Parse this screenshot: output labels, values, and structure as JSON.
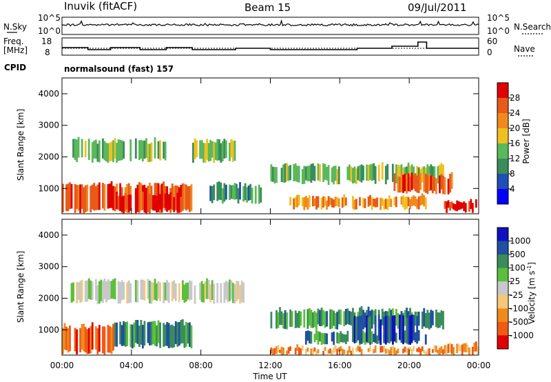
{
  "header": {
    "station": "Inuvik (fitACF)",
    "beam": "Beam 15",
    "date": "09/Jul/2011"
  },
  "top_panels": {
    "nsky_label": "N.Sky",
    "nsky_ticks": [
      "10^5",
      "10^0"
    ],
    "nsearch_label": "N.Search",
    "nsearch_ticks": [
      "10^5",
      "10^0"
    ],
    "freq_label": "Freq.",
    "freq_unit": "[MHz]",
    "freq_ticks": [
      "18",
      "8"
    ],
    "nave_label": "Nave",
    "nave_ticks": [
      "60",
      "0"
    ],
    "cpid_label": "CPID",
    "cpid_value": "normalsound (fast) 157"
  },
  "colors": {
    "power_scale": [
      "#0000ff",
      "#1f4fb4",
      "#3b8c5a",
      "#5bb85b",
      "#f0c020",
      "#f08a1e",
      "#e85a1a",
      "#e00000"
    ],
    "velocity_scale": [
      "#e00000",
      "#f05a14",
      "#f08a1e",
      "#f5c878",
      "#c8c8c8",
      "#5bbf3a",
      "#3b8c5a",
      "#2050a0",
      "#1010c0"
    ],
    "nsky_line": "#000000"
  },
  "chart_data": [
    {
      "type": "heatmap",
      "panel": "power",
      "ylabel": "Slant Range [km]",
      "yticks": [
        "1000",
        "2000",
        "3000",
        "4000"
      ],
      "ylim": [
        200,
        4500
      ],
      "xlim": [
        "00:00",
        "24:00"
      ],
      "colorbar_label": "Power [dB]",
      "colorbar_ticks": [
        "4",
        "8",
        "12",
        "16",
        "20",
        "24",
        "28"
      ],
      "bands": [
        {
          "t0": 0.0,
          "t1": 7.5,
          "r0": 300,
          "r1": 1200,
          "level": 6
        },
        {
          "t0": 3.0,
          "t1": 7.0,
          "r0": 300,
          "r1": 900,
          "level": 7
        },
        {
          "t0": 0.5,
          "t1": 6.0,
          "r0": 1900,
          "r1": 2600,
          "level": 3
        },
        {
          "t0": 7.5,
          "t1": 10.0,
          "r0": 1900,
          "r1": 2600,
          "level": 3
        },
        {
          "t0": 8.5,
          "t1": 11.5,
          "r0": 600,
          "r1": 1200,
          "level": 2
        },
        {
          "t0": 12.0,
          "t1": 22.0,
          "r0": 1200,
          "r1": 1800,
          "level": 3
        },
        {
          "t0": 13.0,
          "t1": 21.0,
          "r0": 400,
          "r1": 800,
          "level": 5
        },
        {
          "t0": 19.0,
          "t1": 22.5,
          "r0": 900,
          "r1": 1500,
          "level": 6
        },
        {
          "t0": 22.0,
          "t1": 24.0,
          "r0": 300,
          "r1": 650,
          "level": 7
        }
      ]
    },
    {
      "type": "heatmap",
      "panel": "velocity",
      "ylabel": "Slant Range [km]",
      "yticks": [
        "1000",
        "2000",
        "3000",
        "4000"
      ],
      "ylim": [
        200,
        4500
      ],
      "xlim": [
        "00:00",
        "24:00"
      ],
      "xlabel": "Time UT",
      "xticks": [
        "00:00",
        "04:00",
        "08:00",
        "12:00",
        "16:00",
        "20:00",
        "00:00"
      ],
      "colorbar_label": "Velocity [m s",
      "colorbar_unit_sup": "-1",
      "colorbar_ticks": [
        "1000",
        "500",
        "100",
        "25",
        "-25",
        "-100",
        "-500",
        "-1000"
      ],
      "bands": [
        {
          "t0": 0.0,
          "t1": 3.0,
          "r0": 300,
          "r1": 1200,
          "level": 1
        },
        {
          "t0": 3.0,
          "t1": 7.5,
          "r0": 500,
          "r1": 1300,
          "level": 6
        },
        {
          "t0": 0.5,
          "t1": 10.5,
          "r0": 1900,
          "r1": 2600,
          "level": 4
        },
        {
          "t0": 12.0,
          "t1": 22.0,
          "r0": 1100,
          "r1": 1700,
          "level": 6
        },
        {
          "t0": 14.0,
          "t1": 21.0,
          "r0": 600,
          "r1": 1000,
          "level": 6
        },
        {
          "t0": 16.5,
          "t1": 20.5,
          "r0": 600,
          "r1": 1500,
          "level": 7
        },
        {
          "t0": 12.0,
          "t1": 22.0,
          "r0": 250,
          "r1": 500,
          "level": 2
        },
        {
          "t0": 22.0,
          "t1": 24.0,
          "r0": 250,
          "r1": 600,
          "level": 2
        }
      ]
    }
  ]
}
